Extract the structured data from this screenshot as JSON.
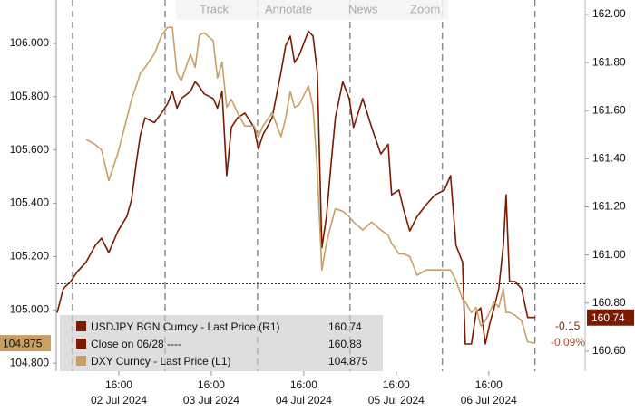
{
  "toolbar": [
    "Track",
    "Annotate",
    "News",
    "Zoom"
  ],
  "chart_data": {
    "type": "line",
    "x": [
      0,
      1.6,
      3.5,
      5.2,
      7.5,
      9.9,
      11.5,
      13.4,
      15.8,
      18.1,
      19.3,
      20.5,
      21.6,
      22.8,
      25.2,
      27.1,
      28.7,
      29.9,
      31.1,
      32.2,
      34.6,
      35.8,
      36.9,
      38.1,
      40.5,
      41.6,
      42.8,
      44,
      45.2,
      46.8,
      48.7,
      51.1,
      52.2,
      53.4,
      55.8,
      58.1,
      59.3,
      60.5,
      61.6,
      62.8,
      65.2,
      66.4,
      67.5,
      68.7,
      69.9,
      71.1,
      72.2,
      74.1,
      75.8,
      76.9,
      79.3,
      81.6,
      84,
      85.9,
      86.8,
      88.7,
      89.9,
      91.5,
      93.4,
      95.8,
      98.1,
      100.5,
      102.1,
      103.5,
      105.2,
      105.9,
      107.5,
      108.7,
      109.9,
      111.1,
      112.2,
      113.4,
      114.6,
      115.8,
      116.5,
      117.4,
      118.8,
      120.5,
      122.1,
      124
    ],
    "xlim": [
      0,
      137
    ],
    "xticks": [
      {
        "value": 16,
        "label": "16:00"
      },
      {
        "value": 40,
        "label": "16:00"
      },
      {
        "value": 64,
        "label": "16:00"
      },
      {
        "value": 88,
        "label": "16:00"
      },
      {
        "value": 112,
        "label": "16:00"
      }
    ],
    "xtick_dates": [
      "02 Jul 2024",
      "03 Jul 2024",
      "04 Jul 2024",
      "05 Jul 2024",
      "06 Jul 2024"
    ],
    "xgrid": [
      4,
      28,
      52,
      76,
      100,
      124
    ],
    "ylim": [
      104.77,
      106.163
    ],
    "yticks": [
      {
        "value": 104.8,
        "label": "104.800"
      },
      {
        "value": 105,
        "label": "105.000"
      },
      {
        "value": 105.2,
        "label": "105.200"
      },
      {
        "value": 105.4,
        "label": "105.400"
      },
      {
        "value": 105.6,
        "label": "105.600"
      },
      {
        "value": 105.8,
        "label": "105.800"
      },
      {
        "value": 106,
        "label": "106.000"
      }
    ],
    "y2lim": [
      160.517,
      162.06
    ],
    "y2ticks": [
      {
        "value": 160.6,
        "label": "160.60"
      },
      {
        "value": 160.8,
        "label": "160.80"
      },
      {
        "value": 161,
        "label": "161.00"
      },
      {
        "value": 161.2,
        "label": "161.20"
      },
      {
        "value": 161.4,
        "label": "161.40"
      },
      {
        "value": 161.6,
        "label": "161.60"
      },
      {
        "value": 161.8,
        "label": "161.80"
      },
      {
        "value": 162,
        "label": "162.00"
      }
    ],
    "series": [
      {
        "name": "USDJPY BGN Curncy - Last Price (R1)",
        "color": "#7a1a00",
        "axis": "y2",
        "last": 160.74,
        "values": [
          160.76,
          160.86,
          160.89,
          160.93,
          160.97,
          161.04,
          161.07,
          161.01,
          161.1,
          161.16,
          161.23,
          161.38,
          161.5,
          161.57,
          161.55,
          161.59,
          161.63,
          161.68,
          161.61,
          161.65,
          161.68,
          161.72,
          161.7,
          161.67,
          161.65,
          161.61,
          161.68,
          161.33,
          161.53,
          161.57,
          161.59,
          161.53,
          161.44,
          161.5,
          161.57,
          161.76,
          161.87,
          161.91,
          161.8,
          161.83,
          161.93,
          161.91,
          161.76,
          161.03,
          161.16,
          161.38,
          161.57,
          161.72,
          161.65,
          161.53,
          161.65,
          161.53,
          161.42,
          161.46,
          161.25,
          161.27,
          161.19,
          161.1,
          161.16,
          161.21,
          161.25,
          161.27,
          161.33,
          161.04,
          160.97,
          160.63,
          160.63,
          160.76,
          160.78,
          160.63,
          160.71,
          160.78,
          160.86,
          161.04,
          161.25,
          160.89,
          160.89,
          160.86,
          160.74,
          160.74
        ]
      },
      {
        "name": "DXY Curncy - Last Price (L1)",
        "color": "#c9a063",
        "axis": "y",
        "last": 104.875,
        "values": [
          null,
          null,
          null,
          null,
          105.64,
          105.62,
          105.6,
          105.485,
          105.59,
          105.72,
          105.79,
          105.84,
          105.89,
          105.91,
          105.96,
          106.03,
          106.06,
          106.06,
          105.89,
          105.86,
          105.96,
          105.91,
          106.03,
          106.04,
          106.01,
          105.87,
          105.93,
          105.76,
          105.79,
          105.74,
          105.69,
          105.69,
          105.65,
          105.69,
          105.74,
          105.65,
          105.72,
          105.82,
          105.76,
          105.77,
          105.84,
          105.76,
          105.52,
          105.15,
          105.25,
          105.32,
          105.38,
          105.37,
          105.35,
          105.33,
          105.3,
          105.33,
          105.3,
          105.28,
          105.25,
          105.21,
          105.21,
          105.2,
          105.13,
          105.15,
          105.15,
          105.15,
          105.15,
          105.11,
          105.04,
          105.03,
          104.99,
          105.01,
          104.94,
          104.96,
          104.99,
          105.03,
          105.01,
          105.08,
          104.99,
          104.99,
          104.98,
          104.96,
          104.88,
          104.875
        ]
      }
    ],
    "reference": {
      "name": "Close on 06/28 ----",
      "value": 160.88,
      "axis": "y2",
      "color": "#8b2500"
    },
    "annotations": [
      "-0.15",
      "-0.09%"
    ]
  }
}
